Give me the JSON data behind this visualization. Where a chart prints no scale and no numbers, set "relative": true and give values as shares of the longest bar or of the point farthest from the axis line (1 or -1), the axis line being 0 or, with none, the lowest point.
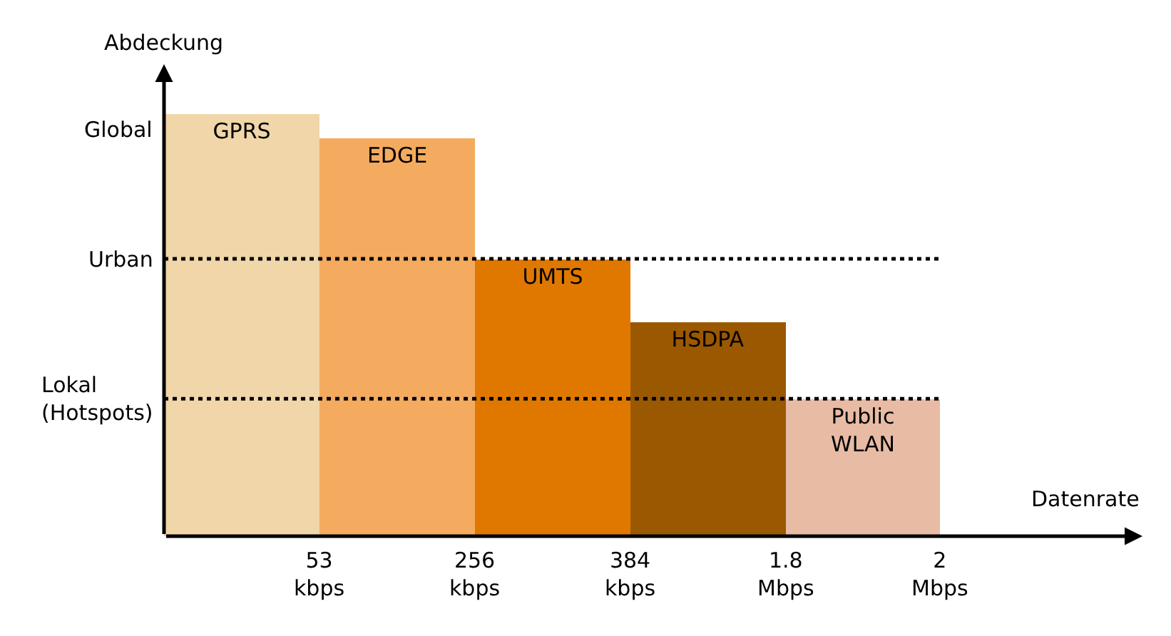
{
  "chart_data": {
    "type": "bar",
    "relative": true,
    "xlabel": "Datenrate",
    "ylabel": "Abdeckung",
    "categories": [
      "GPRS",
      "EDGE",
      "UMTS",
      "HSDPA",
      "Public\nWLAN"
    ],
    "values": [
      1,
      0.944,
      0.658,
      0.508,
      0.326
    ],
    "colors": [
      "#f0d6a8",
      "#f4ab5f",
      "#e07800",
      "#9a5800",
      "#e8bba4"
    ],
    "ref_lines": [
      {
        "axis": "y",
        "value": 0.658,
        "label": "Urban",
        "color": "#000000",
        "line_style": "dotted"
      },
      {
        "axis": "y",
        "value": 0.326,
        "label": "Lokal\n(Hotspots)",
        "color": "#000000",
        "line_style": "dotted"
      }
    ],
    "annotations": [
      "Global",
      "53\nkbps",
      "256\nkbps",
      "384\nkbps",
      "1.8\nMbps",
      "2\nMbps"
    ],
    "legend": false
  }
}
